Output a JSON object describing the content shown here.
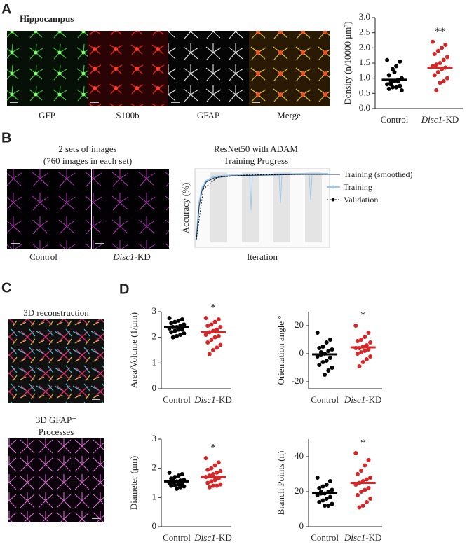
{
  "panels": {
    "A": {
      "letter": "A",
      "title": "Hippocampus",
      "images": [
        "GFP",
        "S100b",
        "GFAP",
        "Merge"
      ]
    },
    "B": {
      "letter": "B",
      "images_title": [
        "2 sets of images",
        "(760 images in each set)"
      ],
      "image_labels": [
        "Control",
        "Disc1-KD"
      ],
      "training": {
        "title": [
          "ResNet50 with ADAM",
          "Training Progress"
        ],
        "legend": [
          "Training (smoothed)",
          "Training",
          "Validation"
        ],
        "y_label": "Accuracy (%)",
        "x_label": "Iteration"
      }
    },
    "C": {
      "letter": "C",
      "reconstruction": "3D reconstruction",
      "processes": [
        "3D GFAP⁺",
        "Processes"
      ]
    },
    "D": {
      "letter": "D"
    }
  },
  "chart_data": [
    {
      "type": "dot",
      "y_label": "Density (n/10000 μm³)",
      "categories": [
        "Control",
        "Disc1-KD"
      ],
      "ylim": [
        0,
        3
      ],
      "yticks": [
        {
          "value": 0,
          "label": "0.0"
        },
        0.5,
        {
          "value": 1,
          "label": "1.0"
        },
        1.5,
        {
          "value": 2,
          "label": "2.0"
        },
        2.5,
        {
          "value": 3,
          "label": "3.0"
        }
      ],
      "groups": [
        {
          "color": "#000000",
          "mean": 0.95,
          "values": [
            1.6,
            1.55,
            1.4,
            1.3,
            1.1,
            1.0,
            0.95,
            0.9,
            0.85,
            0.8,
            0.75,
            0.7,
            0.7,
            0.65,
            0.6,
            0.9,
            1.2,
            0.8
          ]
        },
        {
          "color": "#d62728",
          "mean": 1.35,
          "values": [
            2.2,
            2.1,
            2.0,
            1.9,
            1.8,
            1.7,
            1.6,
            1.5,
            1.45,
            1.4,
            1.35,
            1.3,
            1.2,
            1.1,
            1.0,
            0.9,
            0.85,
            0.6
          ]
        }
      ],
      "annotation": "**"
    },
    {
      "type": "dot",
      "y_label": "Area/Volume (1/μm)",
      "categories": [
        "Control",
        "Disc1-KD"
      ],
      "ylim": [
        0,
        3
      ],
      "yticks": [
        0,
        1,
        2,
        3
      ],
      "groups": [
        {
          "color": "#000000",
          "mean": 2.4,
          "values": [
            2.75,
            2.7,
            2.65,
            2.6,
            2.55,
            2.5,
            2.45,
            2.4,
            2.4,
            2.35,
            2.3,
            2.3,
            2.25,
            2.2,
            2.15,
            2.1,
            2.05,
            2.0
          ]
        },
        {
          "color": "#d62728",
          "mean": 2.2,
          "values": [
            2.75,
            2.7,
            2.6,
            2.5,
            2.45,
            2.4,
            2.3,
            2.25,
            2.2,
            2.1,
            2.05,
            2.0,
            1.9,
            1.8,
            1.7,
            1.6,
            1.5,
            1.35
          ]
        }
      ],
      "annotation": "*"
    },
    {
      "type": "dot",
      "y_label": "Orientation angle °",
      "categories": [
        "Control",
        "Disc1-KD"
      ],
      "ylim": [
        -25,
        30
      ],
      "yticks": [
        -20,
        0,
        20
      ],
      "groups": [
        {
          "color": "#000000",
          "mean": -0.5,
          "values": [
            15,
            10,
            8,
            5,
            4,
            3,
            2,
            0,
            -1,
            -2,
            -3,
            -5,
            -6,
            -8,
            -10,
            -12,
            -15,
            1
          ]
        },
        {
          "color": "#d62728",
          "mean": 4.5,
          "values": [
            20,
            15,
            12,
            10,
            9,
            8,
            6,
            5,
            4,
            4,
            3,
            2,
            1,
            0,
            -2,
            -4,
            -6,
            -9
          ]
        }
      ],
      "annotation": "*"
    },
    {
      "type": "dot",
      "y_label": "Diameter (μm)",
      "categories": [
        "Control",
        "Disc1-KD"
      ],
      "ylim": [
        0,
        3
      ],
      "yticks": [
        0,
        1,
        2,
        3
      ],
      "groups": [
        {
          "color": "#000000",
          "mean": 1.55,
          "values": [
            1.85,
            1.8,
            1.75,
            1.7,
            1.65,
            1.6,
            1.58,
            1.55,
            1.52,
            1.5,
            1.48,
            1.45,
            1.42,
            1.4,
            1.38,
            1.35,
            1.3,
            1.6
          ]
        },
        {
          "color": "#d62728",
          "mean": 1.7,
          "values": [
            2.35,
            2.2,
            2.1,
            2.0,
            1.95,
            1.9,
            1.85,
            1.8,
            1.75,
            1.7,
            1.65,
            1.6,
            1.55,
            1.5,
            1.45,
            1.4,
            1.4,
            1.35
          ]
        }
      ],
      "annotation": "*"
    },
    {
      "type": "dot",
      "y_label": "Branch Points (n)",
      "categories": [
        "Control",
        "Disc1-KD"
      ],
      "ylim": [
        0,
        50
      ],
      "yticks": [
        0,
        20,
        40
      ],
      "groups": [
        {
          "color": "#000000",
          "mean": 19,
          "values": [
            28,
            26,
            24,
            23,
            22,
            21,
            20,
            19,
            19,
            18,
            17,
            16,
            15,
            14,
            13,
            12,
            12,
            20
          ]
        },
        {
          "color": "#d62728",
          "mean": 25,
          "values": [
            42,
            38,
            35,
            32,
            30,
            28,
            27,
            26,
            25,
            24,
            22,
            21,
            20,
            18,
            16,
            14,
            12,
            11
          ]
        }
      ],
      "annotation": "*"
    }
  ]
}
